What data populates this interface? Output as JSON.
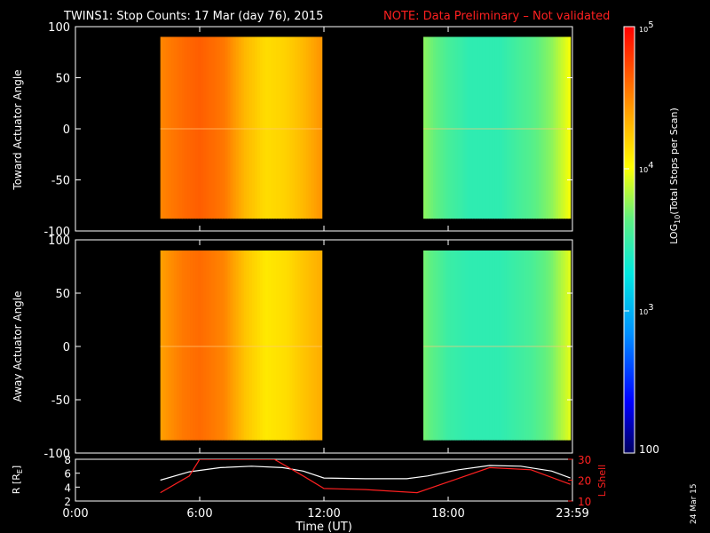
{
  "header": {
    "title": "TWINS1: Stop Counts: 17 Mar (day  76), 2015",
    "note": "NOTE: Data Preliminary – Not validated",
    "note_color": "#ff2020"
  },
  "footer": {
    "date_stamp": "24 Mar 15"
  },
  "chart_data": [
    {
      "type": "heatmap",
      "ylabel": "Toward Actuator Angle",
      "ylim": [
        -100,
        100
      ],
      "yticks": [
        100,
        50,
        0,
        -50,
        -100
      ],
      "xlim": [
        0,
        24
      ],
      "xtick_labels": [
        "0:00",
        "6:00",
        "12:00",
        "18:00",
        "23:59"
      ],
      "blocks": [
        {
          "x_start": 4.1,
          "x_end": 11.9,
          "y_range": [
            -88,
            90
          ],
          "profile_hours": [
            4.1,
            5.2,
            6.0,
            7.2,
            8.2,
            9.2,
            10.2,
            11.0,
            11.9
          ],
          "profile_log10_counts": [
            4.5,
            4.6,
            4.65,
            4.55,
            4.3,
            4.15,
            4.2,
            4.3,
            4.45
          ]
        },
        {
          "x_start": 16.8,
          "x_end": 23.9,
          "y_range": [
            -88,
            90
          ],
          "profile_hours": [
            16.8,
            18.0,
            19.0,
            20.5,
            22.0,
            23.0,
            23.9
          ],
          "profile_log10_counts": [
            3.75,
            3.55,
            3.45,
            3.45,
            3.6,
            3.75,
            4.0
          ]
        }
      ]
    },
    {
      "type": "heatmap",
      "ylabel": "Away Actuator Angle",
      "ylim": [
        -100,
        100
      ],
      "yticks": [
        100,
        50,
        0,
        -50,
        -100
      ],
      "xlim": [
        0,
        24
      ],
      "xtick_labels": [
        "0:00",
        "6:00",
        "12:00",
        "18:00",
        "23:59"
      ],
      "blocks": [
        {
          "x_start": 4.1,
          "x_end": 11.9,
          "y_range": [
            -88,
            90
          ],
          "profile_hours": [
            4.1,
            5.2,
            6.0,
            7.2,
            8.2,
            9.2,
            10.2,
            11.0,
            11.9
          ],
          "profile_log10_counts": [
            4.4,
            4.55,
            4.6,
            4.5,
            4.25,
            4.1,
            4.15,
            4.25,
            4.35
          ]
        },
        {
          "x_start": 16.8,
          "x_end": 23.9,
          "y_range": [
            -88,
            90
          ],
          "profile_hours": [
            16.8,
            18.0,
            19.0,
            20.5,
            22.0,
            23.0,
            23.9
          ],
          "profile_log10_counts": [
            3.7,
            3.5,
            3.45,
            3.45,
            3.55,
            3.7,
            3.95
          ]
        }
      ]
    },
    {
      "type": "colorbar",
      "label": "LOG",
      "label_sub": "10",
      "label_rest": "(Total Stops per Scan)",
      "range_log10": [
        2,
        5
      ],
      "tick_labels": [
        {
          "base": "10",
          "exp": "5",
          "value": 5
        },
        {
          "base": "10",
          "exp": "4",
          "value": 4
        },
        {
          "base": "10",
          "exp": "3",
          "value": 3
        },
        {
          "base": "100",
          "exp": "",
          "value": 2
        }
      ]
    },
    {
      "type": "line",
      "xlabel": "Time (UT)",
      "ylabel_left": "R [R",
      "ylabel_left_sub": "E",
      "ylabel_left_end": "]",
      "ylabel_right": "L Shell",
      "ylim_left": [
        2,
        8
      ],
      "yticks_left": [
        2,
        4,
        6,
        8
      ],
      "ylim_right": [
        10,
        30
      ],
      "yticks_right": [
        10,
        20,
        30
      ],
      "series": [
        {
          "axis": "left",
          "color": "#ffffff",
          "x": [
            4.1,
            5.5,
            7.0,
            8.5,
            10.0,
            11.0,
            12.0,
            14.0,
            16.0,
            17.0,
            18.5,
            20.0,
            21.5,
            23.0,
            23.9
          ],
          "y": [
            5.0,
            6.2,
            6.8,
            7.0,
            6.8,
            6.3,
            5.3,
            5.2,
            5.2,
            5.6,
            6.5,
            7.1,
            7.0,
            6.3,
            5.3
          ]
        },
        {
          "axis": "right",
          "color": "#ff2020",
          "x": [
            4.1,
            5.5,
            6.0,
            9.6,
            11.0,
            12.0,
            14.0,
            16.5,
            20.0,
            22.0,
            23.9
          ],
          "y": [
            14,
            22,
            30,
            30,
            22,
            16,
            15.5,
            14,
            26,
            25,
            18
          ]
        }
      ]
    }
  ]
}
